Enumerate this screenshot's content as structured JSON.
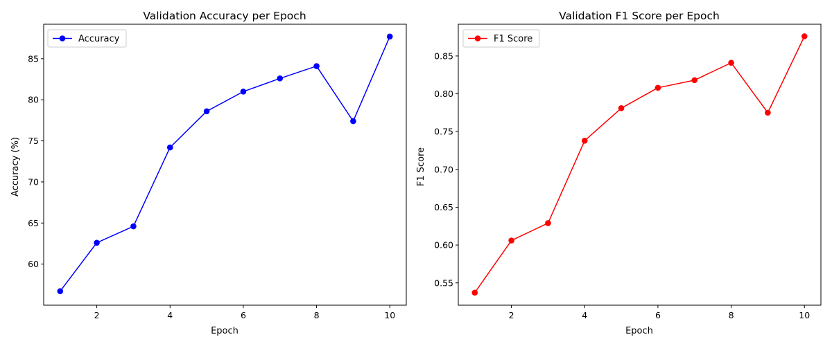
{
  "chart_data": [
    {
      "type": "line",
      "title": "Validation Accuracy per Epoch",
      "xlabel": "Epoch",
      "ylabel": "Accuracy (%)",
      "x": [
        1,
        2,
        3,
        4,
        5,
        6,
        7,
        8,
        9,
        10
      ],
      "series": [
        {
          "name": "Accuracy",
          "color": "#0000ff",
          "marker": "circle",
          "values": [
            56.7,
            62.6,
            64.6,
            74.2,
            78.6,
            81.0,
            82.6,
            84.1,
            77.4,
            87.7
          ]
        }
      ],
      "xlim": [
        0.55,
        10.45
      ],
      "ylim": [
        55.0,
        89.2
      ],
      "xticks": [
        2,
        4,
        6,
        8,
        10
      ],
      "xtick_labels": [
        "2",
        "4",
        "6",
        "8",
        "10"
      ],
      "yticks": [
        60,
        65,
        70,
        75,
        80,
        85
      ],
      "ytick_labels": [
        "60",
        "65",
        "70",
        "75",
        "80",
        "85"
      ],
      "legend": "upper-left",
      "grid": false
    },
    {
      "type": "line",
      "title": "Validation F1 Score per Epoch",
      "xlabel": "Epoch",
      "ylabel": "F1 Score",
      "x": [
        1,
        2,
        3,
        4,
        5,
        6,
        7,
        8,
        9,
        10
      ],
      "series": [
        {
          "name": "F1 Score",
          "color": "#ff0000",
          "marker": "circle",
          "values": [
            0.537,
            0.606,
            0.629,
            0.738,
            0.781,
            0.808,
            0.818,
            0.841,
            0.775,
            0.876
          ]
        }
      ],
      "xlim": [
        0.55,
        10.45
      ],
      "ylim": [
        0.5205,
        0.892
      ],
      "xticks": [
        2,
        4,
        6,
        8,
        10
      ],
      "xtick_labels": [
        "2",
        "4",
        "6",
        "8",
        "10"
      ],
      "yticks": [
        0.55,
        0.6,
        0.65,
        0.7,
        0.75,
        0.8,
        0.85
      ],
      "ytick_labels": [
        "0.55",
        "0.60",
        "0.65",
        "0.70",
        "0.75",
        "0.80",
        "0.85"
      ],
      "legend": "upper-left",
      "grid": false
    }
  ]
}
